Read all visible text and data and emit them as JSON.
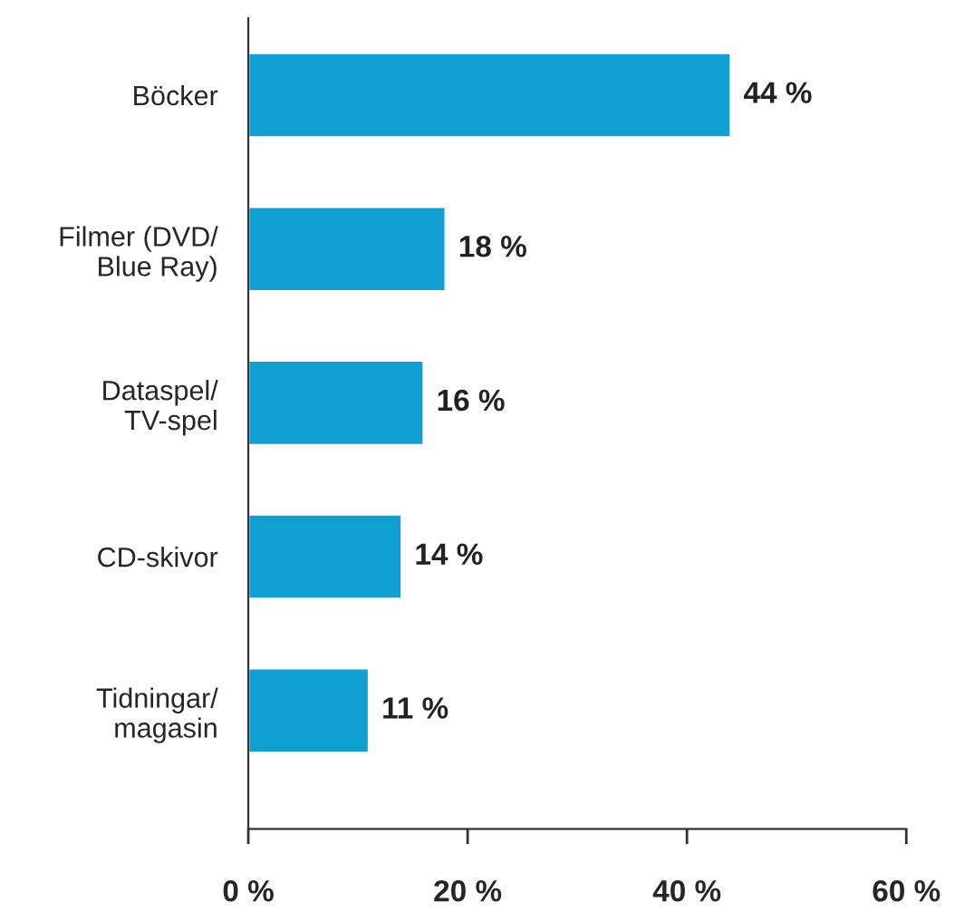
{
  "chart_data": {
    "type": "bar",
    "orientation": "horizontal",
    "categories": [
      "Böcker",
      "Filmer (DVD/\nBlue Ray)",
      "Dataspel/\nTV-spel",
      "CD-skivor",
      "Tidningar/\nmagasin"
    ],
    "values": [
      44,
      18,
      16,
      14,
      11
    ],
    "value_labels": [
      "44 %",
      "18 %",
      "16 %",
      "14 %",
      "11 %"
    ],
    "color": "#0f9fd2",
    "xlim": [
      0,
      60
    ],
    "xticks": [
      {
        "value": 0,
        "label": "0 %"
      },
      {
        "value": 20,
        "label": "20 %"
      },
      {
        "value": 40,
        "label": "40 %"
      },
      {
        "value": 60,
        "label": "60 %"
      }
    ],
    "grid": false,
    "legend": false
  }
}
